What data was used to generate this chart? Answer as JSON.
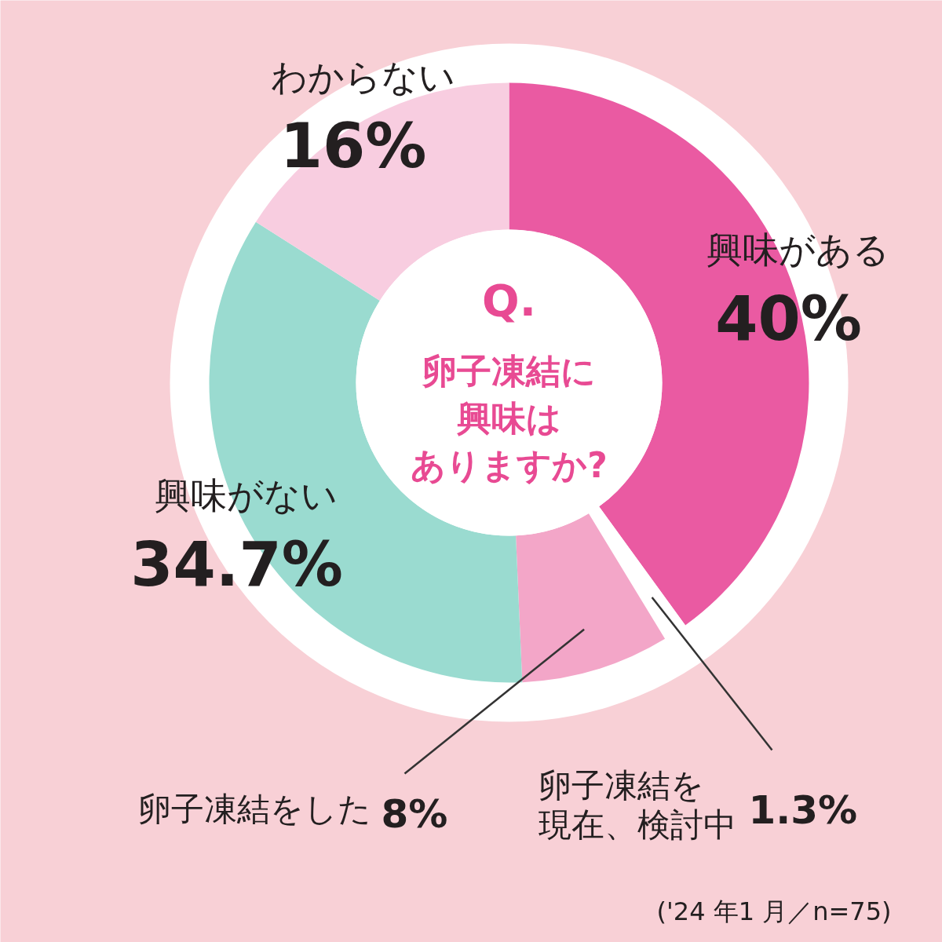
{
  "chart_data": {
    "type": "donut",
    "title": "Q.卵子凍結に興味はありますか?",
    "categories": [
      "興味がある",
      "卵子凍結を現在、検討中",
      "卵子凍結をした",
      "興味がない",
      "わからない"
    ],
    "values": [
      40,
      1.3,
      8,
      34.7,
      16
    ],
    "colors": [
      "#ea5aa2",
      "#ffffff",
      "#f3a6c8",
      "#9adbd0",
      "#f8cde0"
    ],
    "value_labels": [
      "40%",
      "1.3%",
      "8%",
      "34.7%",
      "16%"
    ],
    "annotations": [
      "('24 年1 月／n=75)"
    ]
  }
}
